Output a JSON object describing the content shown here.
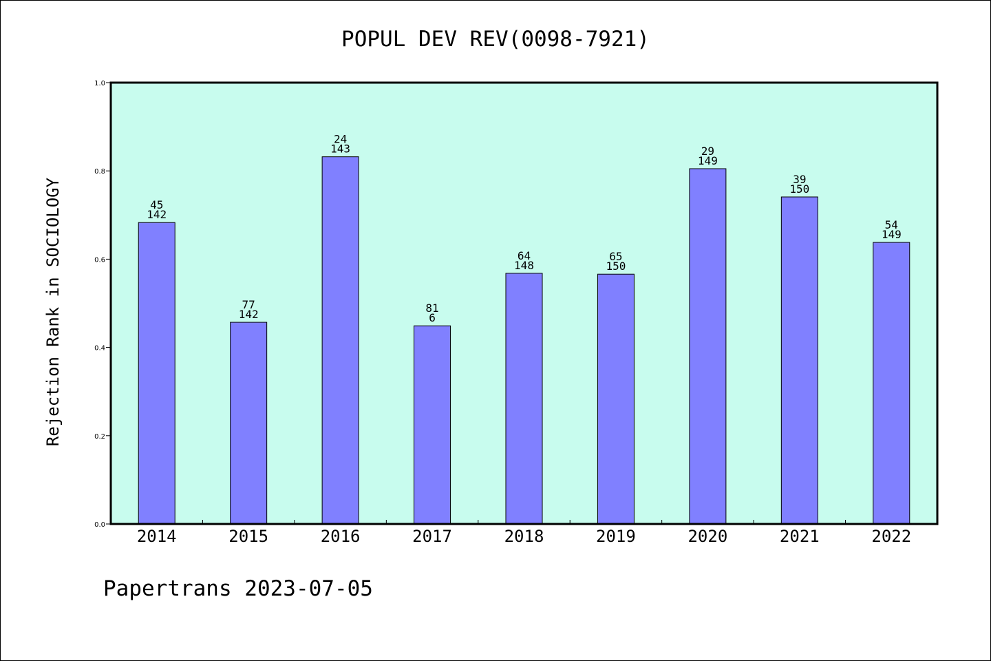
{
  "footer": {
    "text": "Papertrans 2023-07-05"
  },
  "chart_data": {
    "type": "bar",
    "title": "POPUL DEV REV(0098-7921)",
    "xlabel": "",
    "ylabel": "Rejection Rank in SOCIOLOGY",
    "ylim": [
      0,
      1.0
    ],
    "yticks": [
      "0.0",
      "0.2",
      "0.4",
      "0.6",
      "0.8",
      "1.0"
    ],
    "categories": [
      "2014",
      "2015",
      "2016",
      "2017",
      "2018",
      "2019",
      "2020",
      "2021",
      "2022"
    ],
    "values": [
      0.683,
      0.457,
      0.832,
      0.449,
      0.568,
      0.566,
      0.805,
      0.741,
      0.638
    ],
    "label_top": [
      "45",
      "77",
      "24",
      "81",
      "64",
      "65",
      "29",
      "39",
      "54"
    ],
    "label_bottom": [
      "142",
      "142",
      "143",
      "6",
      "148",
      "150",
      "149",
      "150",
      "149"
    ],
    "grid": false,
    "legend": "none",
    "colors": {
      "plot_background": "#c8fcee",
      "bar_fill": "#8080ff",
      "bar_stroke": "#000000",
      "axis": "#000000"
    }
  }
}
